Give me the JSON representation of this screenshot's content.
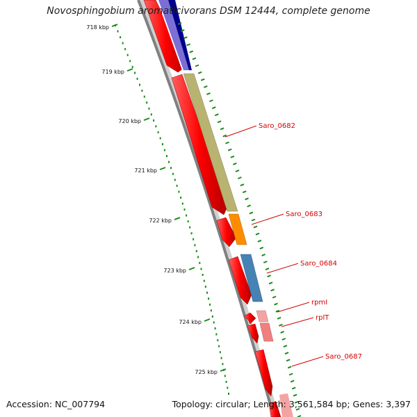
{
  "title": "Novosphingobium aromaticivorans DSM 12444, complete genome",
  "footer": {
    "accession": "Accession: NC_007794",
    "summary": "Topology: circular; Length: 3,561,584 bp; Genes: 3,397"
  },
  "ticks": [
    "718 kbp",
    "719 kbp",
    "720 kbp",
    "721 kbp",
    "722 kbp",
    "723 kbp",
    "724 kbp",
    "725 kbp"
  ],
  "genes": [
    {
      "label": "Saro_0682",
      "color": "#b8b370"
    },
    {
      "label": "Saro_0683",
      "color": "#ff8c00"
    },
    {
      "label": "Saro_0684",
      "color": "#4682b4"
    },
    {
      "label": "rpmI",
      "color": "#f4a3a3"
    },
    {
      "label": "rplT",
      "color": "#f08080"
    },
    {
      "label": "Saro_0687",
      "color": "#e00000"
    }
  ],
  "colors": {
    "cds": "#ff0000",
    "backbone": "#808080",
    "ticks": "#1a8a1a",
    "label": "#d40000"
  }
}
